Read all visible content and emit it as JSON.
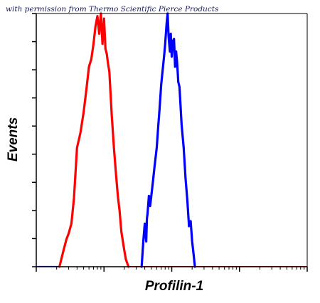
{
  "credit_text": "with permission from Thermo Scientific Pierce Products",
  "chart_data": {
    "type": "line",
    "title": "",
    "xlabel": "Profilin-1",
    "ylabel": "Events",
    "x_scale": "log",
    "xlim": [
      1,
      10000
    ],
    "ylim": [
      0,
      100
    ],
    "grid": false,
    "y_tick_count": 9,
    "x_tick_labels": [],
    "y_tick_labels": [],
    "series": [
      {
        "color": "#ff0000",
        "x": [
          2.2,
          2.5,
          2.8,
          3.0,
          3.3,
          3.6,
          4.0,
          4.5,
          5.0,
          5.5,
          6.0,
          6.5,
          7.0,
          7.5,
          8.0,
          8.5,
          9.0,
          9.5,
          10.0,
          10.5,
          11.0,
          11.5,
          12.0,
          13.0,
          14.0,
          15.0,
          16.0,
          17.0,
          18.0,
          19.5,
          21.0,
          23.0
        ],
        "y": [
          0,
          6,
          11,
          13,
          17,
          27,
          47,
          53,
          61,
          70,
          79,
          82,
          88,
          95,
          99,
          92,
          100,
          88,
          98,
          86,
          84,
          80,
          77,
          60,
          47,
          37,
          28,
          22,
          14,
          8,
          3,
          0
        ]
      },
      {
        "color": "#0000ff",
        "x": [
          36,
          38,
          40,
          41,
          42,
          43,
          44,
          46,
          48,
          50,
          53,
          56,
          60,
          63,
          66,
          70,
          73,
          77,
          80,
          84,
          87,
          90,
          94,
          97,
          100,
          104,
          108,
          112,
          116,
          120,
          125,
          130,
          140,
          150,
          160,
          170,
          180,
          190,
          200,
          210,
          220
        ],
        "y": [
          0,
          10,
          17,
          14,
          10,
          19,
          21,
          28,
          24,
          28,
          34,
          40,
          47,
          55,
          62,
          72,
          77,
          83,
          88,
          96,
          100,
          91,
          85,
          92,
          83,
          89,
          90,
          79,
          85,
          81,
          73,
          71,
          56,
          47,
          35,
          26,
          16,
          18,
          10,
          5,
          0
        ]
      }
    ]
  },
  "colors": {
    "axis": "#000000",
    "baseline_red": "#ff0000",
    "baseline_blue": "#0000ff"
  }
}
